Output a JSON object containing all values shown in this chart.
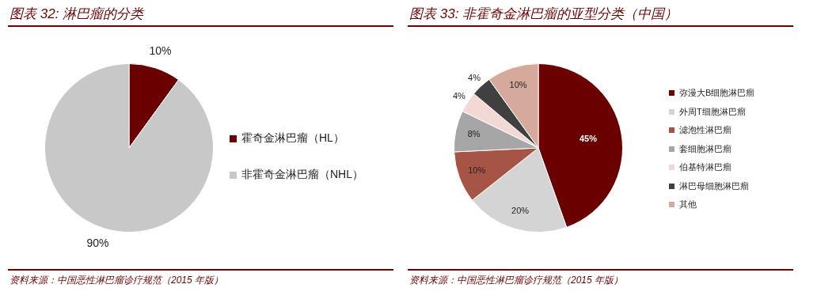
{
  "chart_data": [
    {
      "type": "pie",
      "title": "图表 32: 淋巴瘤的分类",
      "categories": [
        "霍奇金淋巴瘤（HL）",
        "非霍奇金淋巴瘤（NHL）"
      ],
      "values": [
        10,
        90
      ],
      "colors": [
        "#6b0000",
        "#c8c8c8"
      ],
      "value_labels": [
        "10%",
        "90%"
      ],
      "legend": "right",
      "annotations": [
        "资料来源：中国恶性淋巴瘤诊疗规范（2015 年版）"
      ]
    },
    {
      "type": "pie",
      "title": "图表 33: 非霍奇金淋巴瘤的亚型分类（中国）",
      "categories": [
        "弥漫大B细胞淋巴瘤",
        "外周T细胞淋巴瘤",
        "滤泡性淋巴瘤",
        "套细胞淋巴瘤",
        "伯基特淋巴瘤",
        "淋巴母细胞淋巴瘤",
        "其他"
      ],
      "values": [
        45,
        20,
        10,
        8,
        4,
        4,
        10
      ],
      "colors": [
        "#6b0000",
        "#d4d4d4",
        "#a65446",
        "#a6a6a6",
        "#f2d9d6",
        "#404040",
        "#d5aa9d"
      ],
      "value_labels": [
        "45%",
        "20%",
        "10%",
        "8%",
        "4%",
        "4%",
        "10%"
      ],
      "legend": "right",
      "annotations": [
        "资料来源：中国恶性淋巴瘤诊疗规范（2015 年版）"
      ]
    }
  ]
}
